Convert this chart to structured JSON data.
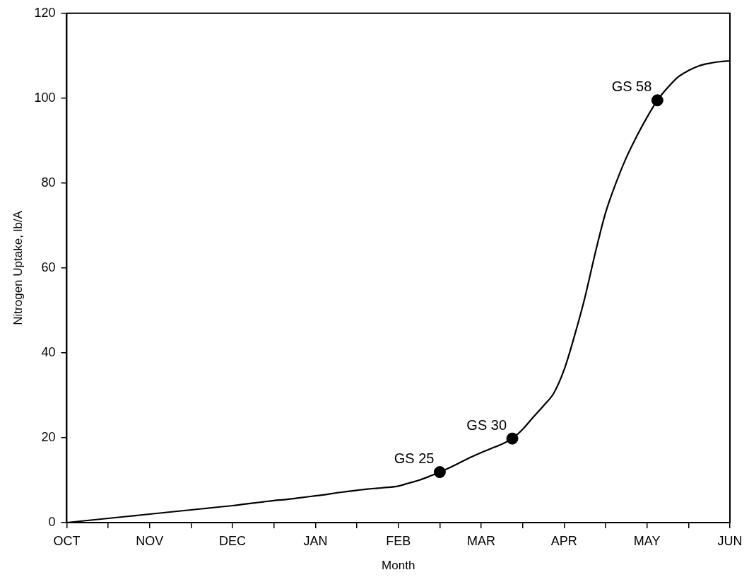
{
  "chart_data": {
    "type": "line",
    "xlabel": "Month",
    "ylabel": "Nitrogen Uptake, lb/A",
    "categories": [
      "OCT",
      null,
      null,
      null,
      null,
      null,
      null,
      null,
      "NOV",
      null,
      null,
      null,
      null,
      null,
      null,
      null,
      "DEC",
      null,
      null,
      null,
      null,
      null,
      null,
      null,
      "JAN",
      null,
      null,
      null,
      null,
      null,
      null,
      null,
      "FEB",
      null,
      null,
      null,
      null,
      null,
      null,
      null,
      "MAR",
      null,
      null,
      null,
      null,
      null,
      null,
      null,
      "APR",
      null,
      null,
      null,
      null,
      null,
      null,
      null,
      "MAY",
      null,
      null,
      null,
      null,
      null,
      null,
      null,
      "JUN"
    ],
    "ylim": [
      0,
      120
    ],
    "yticks": [
      0,
      20,
      40,
      60,
      80,
      100,
      120
    ],
    "grid": false,
    "legend": false,
    "series": [
      {
        "color": "#000000",
        "marker": "none",
        "line_style": "solid",
        "values": [
          0,
          0.25,
          0.5,
          0.75,
          1,
          1.25,
          1.5,
          1.75,
          2,
          2.25,
          2.5,
          2.75,
          3,
          3.25,
          3.5,
          3.75,
          4,
          4.3,
          4.6,
          4.9,
          5.2,
          5.4,
          5.7,
          6,
          6.3,
          6.6,
          7,
          7.3,
          7.6,
          7.9,
          8.1,
          8.3,
          8.6,
          9.3,
          10,
          10.9,
          11.9,
          13,
          14.2,
          15.4,
          16.5,
          17.5,
          18.5,
          19.8,
          22,
          24.8,
          27.5,
          30.5,
          36,
          44,
          53,
          63.5,
          73,
          80,
          86,
          91,
          95.5,
          99.5,
          102.5,
          105,
          106.5,
          107.6,
          108.2,
          108.6,
          108.8
        ]
      },
      {
        "type": "scatter",
        "color": "#000000",
        "marker": "circle",
        "values": [
          null,
          null,
          null,
          null,
          null,
          null,
          null,
          null,
          null,
          null,
          null,
          null,
          null,
          null,
          null,
          null,
          null,
          null,
          null,
          null,
          null,
          null,
          null,
          null,
          null,
          null,
          null,
          null,
          null,
          null,
          null,
          null,
          null,
          null,
          null,
          null,
          11.9,
          null,
          null,
          null,
          null,
          null,
          null,
          19.8,
          null,
          null,
          null,
          null,
          null,
          null,
          null,
          null,
          null,
          null,
          null,
          null,
          null,
          99.5,
          null,
          null,
          null,
          null,
          null,
          null,
          null
        ]
      }
    ],
    "annotations": [
      "GS 25",
      "GS 30",
      "GS 58"
    ]
  }
}
